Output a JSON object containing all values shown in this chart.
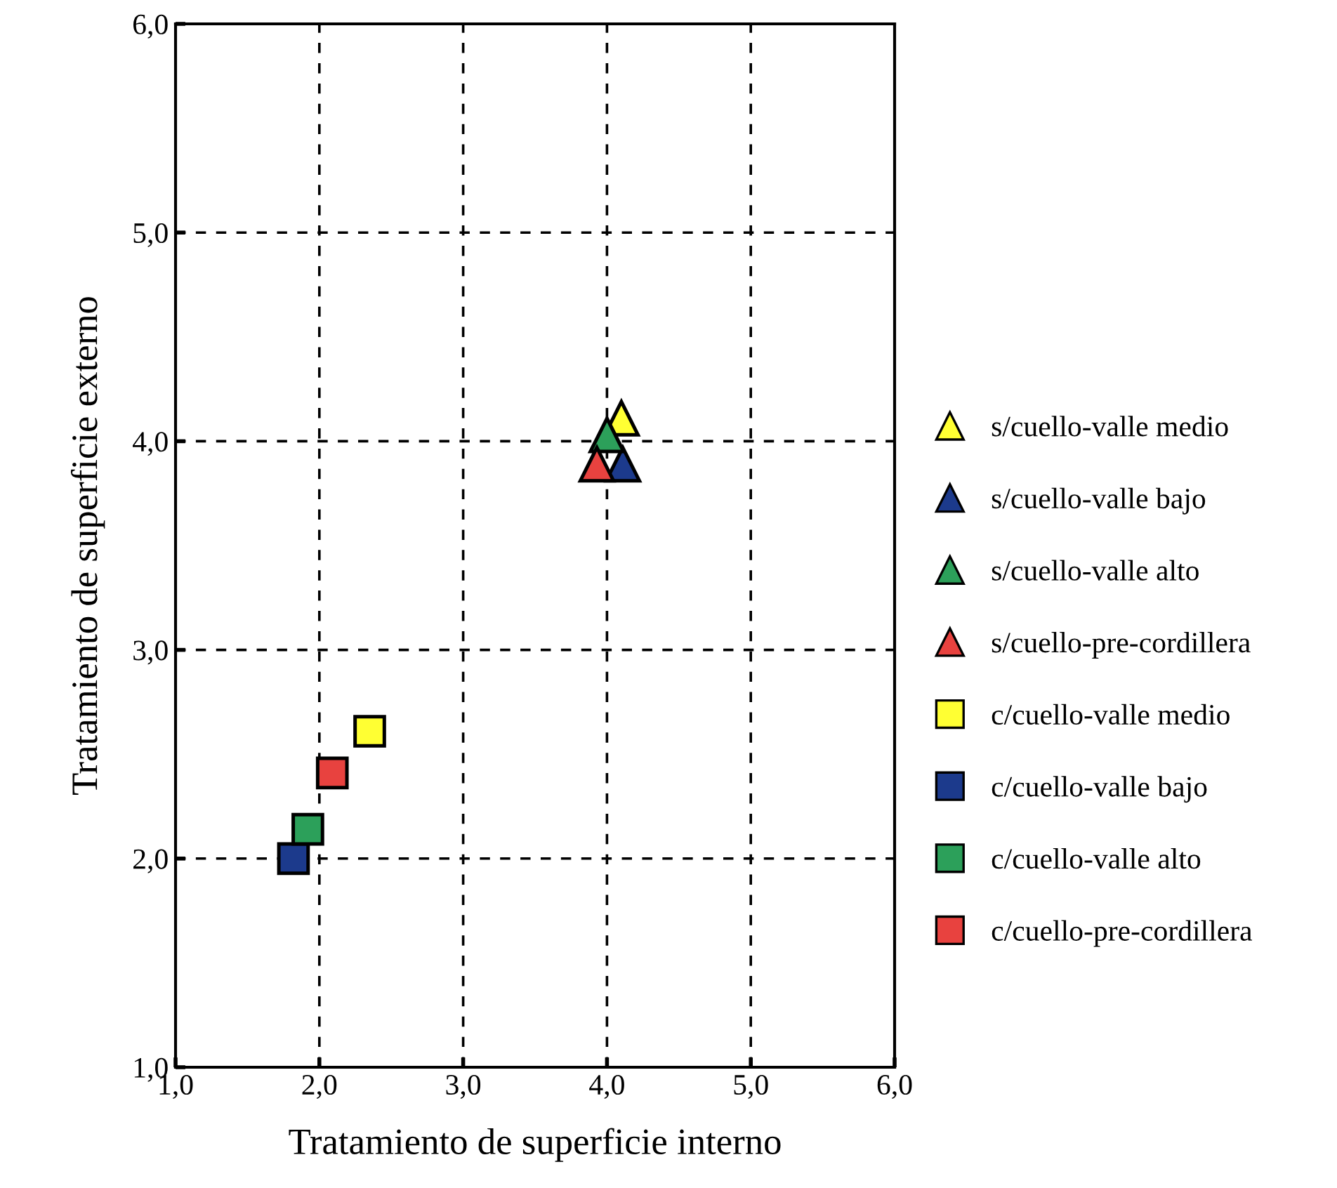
{
  "chart_data": {
    "type": "scatter",
    "xlabel": "Tratamiento de superficie interno",
    "ylabel": "Tratamiento de superficie externo",
    "xlim": [
      1,
      6
    ],
    "ylim": [
      1,
      6
    ],
    "xticks": [
      {
        "value": 1,
        "label": "1,0"
      },
      {
        "value": 2,
        "label": "2,0"
      },
      {
        "value": 3,
        "label": "3,0"
      },
      {
        "value": 4,
        "label": "4,0"
      },
      {
        "value": 5,
        "label": "5,0"
      },
      {
        "value": 6,
        "label": "6,0"
      }
    ],
    "yticks": [
      {
        "value": 1,
        "label": "1,0"
      },
      {
        "value": 2,
        "label": "2,0"
      },
      {
        "value": 3,
        "label": "3,0"
      },
      {
        "value": 4,
        "label": "4,0"
      },
      {
        "value": 5,
        "label": "5,0"
      },
      {
        "value": 6,
        "label": "6,0"
      }
    ],
    "grid": true,
    "line_style": "dashed",
    "legend": "right",
    "series": [
      {
        "name": "s/cuello-valle medio",
        "color": "#ffff33",
        "marker": "triangle",
        "x": [
          4.1
        ],
        "values": [
          4.11
        ]
      },
      {
        "name": "s/cuello-valle bajo",
        "color": "#1c3a8c",
        "marker": "triangle",
        "x": [
          4.11
        ],
        "values": [
          3.89
        ]
      },
      {
        "name": "s/cuello-valle alto",
        "color": "#2ca05a",
        "marker": "triangle",
        "x": [
          4.0
        ],
        "values": [
          4.03
        ]
      },
      {
        "name": "s/cuello-pre-cordillera",
        "color": "#e8423f",
        "marker": "triangle",
        "x": [
          3.93
        ],
        "values": [
          3.89
        ]
      },
      {
        "name": "c/cuello-valle medio",
        "color": "#ffff33",
        "marker": "square",
        "x": [
          2.35
        ],
        "values": [
          2.61
        ]
      },
      {
        "name": "c/cuello-valle bajo",
        "color": "#1c3a8c",
        "marker": "square",
        "x": [
          1.82
        ],
        "values": [
          2.0
        ]
      },
      {
        "name": "c/cuello-valle alto",
        "color": "#2ca05a",
        "marker": "square",
        "x": [
          1.92
        ],
        "values": [
          2.14
        ]
      },
      {
        "name": "c/cuello-pre-cordillera",
        "color": "#e8423f",
        "marker": "square",
        "x": [
          2.09
        ],
        "values": [
          2.41
        ]
      }
    ]
  }
}
